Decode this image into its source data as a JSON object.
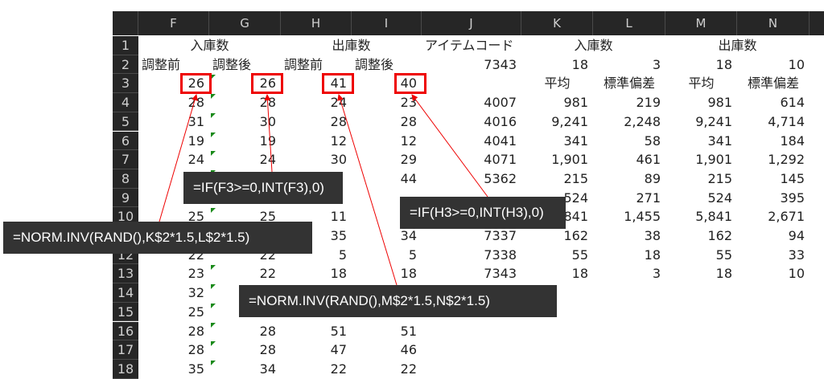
{
  "columns": [
    "F",
    "G",
    "H",
    "I",
    "J",
    "K",
    "L",
    "M",
    "N"
  ],
  "rows": [
    [
      "入庫数",
      "",
      "出庫数",
      "",
      "アイテムコード",
      "入庫数",
      "",
      "出庫数",
      ""
    ],
    [
      "調整前",
      "調整後",
      "調整前",
      "調整後",
      "7343",
      "18",
      "3",
      "18",
      "10"
    ],
    [
      "26",
      "26",
      "41",
      "40",
      "",
      "平均",
      "標準偏差",
      "平均",
      "標準偏差"
    ],
    [
      "28",
      "28",
      "24",
      "23",
      "4007",
      "981",
      "219",
      "981",
      "614"
    ],
    [
      "31",
      "30",
      "28",
      "28",
      "4016",
      "9,241",
      "2,248",
      "9,241",
      "4,714"
    ],
    [
      "19",
      "19",
      "12",
      "12",
      "4041",
      "341",
      "58",
      "341",
      "184"
    ],
    [
      "24",
      "24",
      "30",
      "29",
      "4071",
      "1,901",
      "461",
      "1,901",
      "1,292"
    ],
    [
      "",
      "",
      "",
      "44",
      "5362",
      "215",
      "89",
      "215",
      "145"
    ],
    [
      "",
      "",
      "",
      "",
      "",
      "524",
      "271",
      "524",
      "395"
    ],
    [
      "25",
      "25",
      "11",
      "",
      "",
      "5,841",
      "1,455",
      "5,841",
      "2,671"
    ],
    [
      "",
      "",
      "35",
      "34",
      "7337",
      "162",
      "38",
      "162",
      "94"
    ],
    [
      "22",
      "22",
      "5",
      "5",
      "7338",
      "55",
      "18",
      "55",
      "33"
    ],
    [
      "23",
      "22",
      "18",
      "18",
      "7343",
      "18",
      "3",
      "18",
      "10"
    ],
    [
      "32",
      "",
      "",
      "",
      "",
      "",
      "",
      "",
      ""
    ],
    [
      "25",
      "",
      "",
      "",
      "",
      "",
      "",
      "",
      ""
    ],
    [
      "28",
      "28",
      "51",
      "51",
      "",
      "",
      "",
      "",
      ""
    ],
    [
      "28",
      "28",
      "47",
      "46",
      "",
      "",
      "",
      "",
      ""
    ],
    [
      "35",
      "34",
      "22",
      "22",
      "",
      "",
      "",
      "",
      ""
    ]
  ],
  "callouts": {
    "g3": "=IF(F3>=0,INT(F3),0)",
    "i3": "=IF(H3>=0,INT(H3),0)",
    "f3": "=NORM.INV(RAND(),K$2*1.5,L$2*1.5)",
    "h3": "=NORM.INV(RAND(),M$2*1.5,N$2*1.5)"
  },
  "colors": {
    "highlight": "#e00000",
    "error_indicator": "#1a8a1a",
    "header_bg": "#262626"
  }
}
